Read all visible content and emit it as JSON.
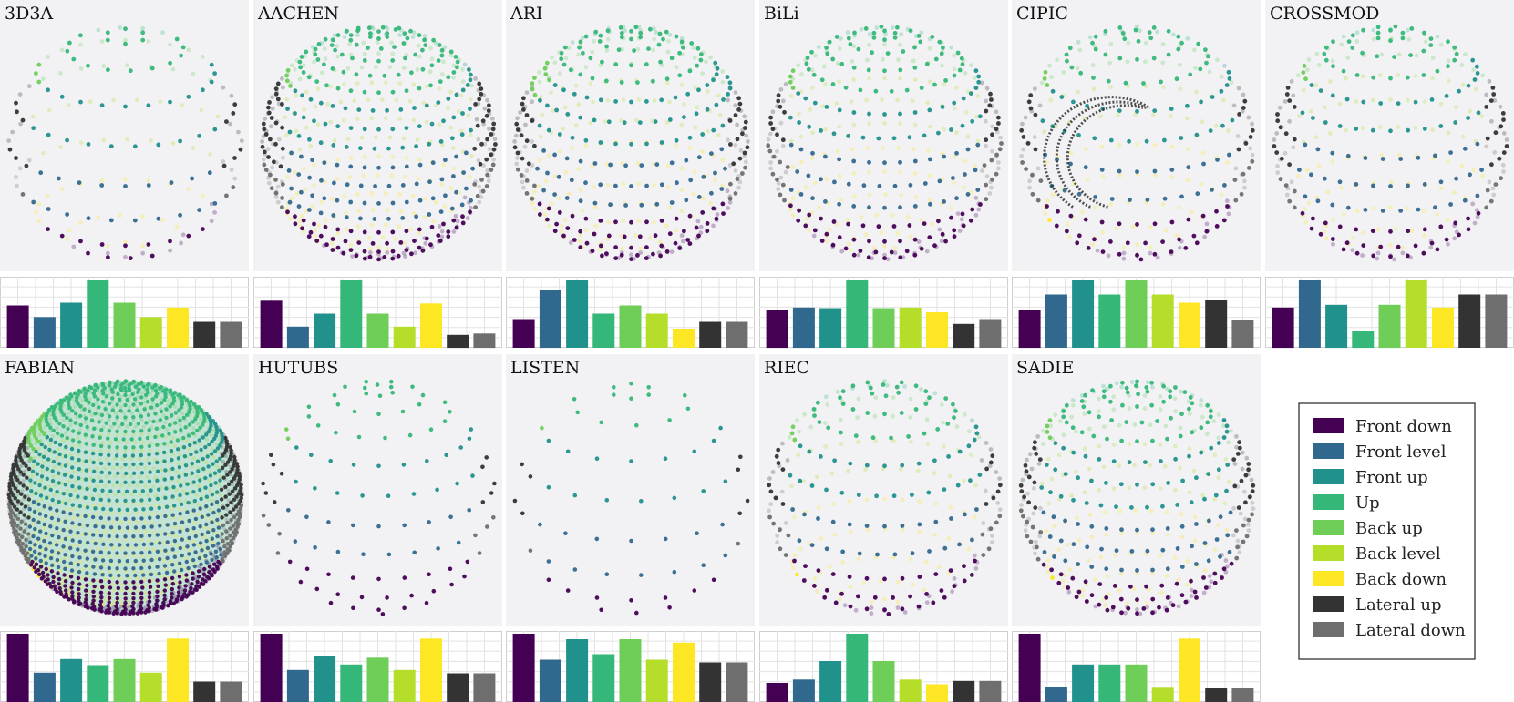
{
  "colors": {
    "Front down": "#440154",
    "Front level": "#31688e",
    "Front up": "#21918c",
    "Up": "#35b779",
    "Back up": "#6ece58",
    "Back level": "#b5de2b",
    "Back down": "#fde725",
    "Lateral up": "#333333",
    "Lateral down": "#6e6e6e"
  },
  "legend": {
    "items": [
      "Front down",
      "Front level",
      "Front up",
      "Up",
      "Back up",
      "Back level",
      "Back down",
      "Lateral up",
      "Lateral down"
    ]
  },
  "chart_data": [
    {
      "type": "bar",
      "title": "3D3A",
      "categories": [
        "Front down",
        "Front level",
        "Front up",
        "Up",
        "Back up",
        "Back level",
        "Back down",
        "Lateral up",
        "Lateral down"
      ],
      "values": [
        0.62,
        0.45,
        0.66,
        1.0,
        0.66,
        0.45,
        0.59,
        0.38,
        0.38
      ],
      "ylim": [
        0,
        1
      ],
      "grid": true,
      "sphere": {
        "style": "rings",
        "rows": 9,
        "density": 0.6
      }
    },
    {
      "type": "bar",
      "title": "AACHEN",
      "categories": [
        "Front down",
        "Front level",
        "Front up",
        "Up",
        "Back up",
        "Back level",
        "Back down",
        "Lateral up",
        "Lateral down"
      ],
      "values": [
        0.69,
        0.31,
        0.5,
        1.0,
        0.5,
        0.31,
        0.65,
        0.19,
        0.21
      ],
      "ylim": [
        0,
        1
      ],
      "grid": true,
      "sphere": {
        "style": "grid",
        "rows": 19,
        "density": 1.0
      }
    },
    {
      "type": "bar",
      "title": "ARI",
      "categories": [
        "Front down",
        "Front level",
        "Front up",
        "Up",
        "Back up",
        "Back level",
        "Back down",
        "Lateral up",
        "Lateral down"
      ],
      "values": [
        0.42,
        0.85,
        1.0,
        0.5,
        0.62,
        0.5,
        0.28,
        0.38,
        0.38
      ],
      "ylim": [
        0,
        1
      ],
      "grid": true,
      "sphere": {
        "style": "grid",
        "rows": 17,
        "density": 0.9
      }
    },
    {
      "type": "bar",
      "title": "BiLi",
      "categories": [
        "Front down",
        "Front level",
        "Front up",
        "Up",
        "Back up",
        "Back level",
        "Back down",
        "Lateral up",
        "Lateral down"
      ],
      "values": [
        0.55,
        0.59,
        0.58,
        1.0,
        0.58,
        0.59,
        0.52,
        0.35,
        0.42
      ],
      "ylim": [
        0,
        1
      ],
      "grid": true,
      "sphere": {
        "style": "grid",
        "rows": 15,
        "density": 0.9
      }
    },
    {
      "type": "bar",
      "title": "CIPIC",
      "categories": [
        "Front down",
        "Front level",
        "Front up",
        "Up",
        "Back up",
        "Back level",
        "Back down",
        "Lateral up",
        "Lateral down"
      ],
      "values": [
        0.55,
        0.78,
        1.0,
        0.78,
        1.0,
        0.78,
        0.66,
        0.7,
        0.4
      ],
      "ylim": [
        0,
        1
      ],
      "grid": true,
      "sphere": {
        "style": "arcs",
        "rows": 12,
        "density": 0.8
      }
    },
    {
      "type": "bar",
      "title": "CROSSMOD",
      "categories": [
        "Front down",
        "Front level",
        "Front up",
        "Up",
        "Back up",
        "Back level",
        "Back down",
        "Lateral up",
        "Lateral down"
      ],
      "values": [
        0.59,
        1.0,
        0.63,
        0.25,
        0.63,
        1.0,
        0.59,
        0.78,
        0.78
      ],
      "ylim": [
        0,
        1
      ],
      "grid": true,
      "sphere": {
        "style": "grid",
        "rows": 13,
        "density": 0.8
      }
    },
    {
      "type": "bar",
      "title": "FABIAN",
      "categories": [
        "Front down",
        "Front level",
        "Front up",
        "Up",
        "Back up",
        "Back level",
        "Back down",
        "Lateral up",
        "Lateral down"
      ],
      "values": [
        1.0,
        0.43,
        0.63,
        0.54,
        0.63,
        0.43,
        0.93,
        0.3,
        0.3
      ],
      "ylim": [
        0,
        1
      ],
      "grid": true,
      "sphere": {
        "style": "solid",
        "rows": 40,
        "density": 1.0
      }
    },
    {
      "type": "bar",
      "title": "HUTUBS",
      "categories": [
        "Front down",
        "Front level",
        "Front up",
        "Up",
        "Back up",
        "Back level",
        "Back down",
        "Lateral up",
        "Lateral down"
      ],
      "values": [
        1.0,
        0.47,
        0.67,
        0.55,
        0.65,
        0.47,
        0.93,
        0.42,
        0.42
      ],
      "ylim": [
        0,
        1
      ],
      "grid": true,
      "sphere": {
        "style": "sparse",
        "rows": 12,
        "density": 0.55
      }
    },
    {
      "type": "bar",
      "title": "LISTEN",
      "categories": [
        "Front down",
        "Front level",
        "Front up",
        "Up",
        "Back up",
        "Back level",
        "Back down",
        "Lateral up",
        "Lateral down"
      ],
      "values": [
        1.0,
        0.62,
        0.92,
        0.7,
        0.92,
        0.62,
        0.87,
        0.58,
        0.58
      ],
      "ylim": [
        0,
        1
      ],
      "grid": true,
      "sphere": {
        "style": "sparse",
        "rows": 9,
        "density": 0.4
      }
    },
    {
      "type": "bar",
      "title": "RIEC",
      "categories": [
        "Front down",
        "Front level",
        "Front up",
        "Up",
        "Back up",
        "Back level",
        "Back down",
        "Lateral up",
        "Lateral down"
      ],
      "values": [
        0.28,
        0.33,
        0.6,
        1.0,
        0.6,
        0.33,
        0.26,
        0.31,
        0.31
      ],
      "ylim": [
        0,
        1
      ],
      "grid": true,
      "sphere": {
        "style": "rings",
        "rows": 12,
        "density": 0.8
      }
    },
    {
      "type": "bar",
      "title": "SADIE",
      "categories": [
        "Front down",
        "Front level",
        "Front up",
        "Up",
        "Back up",
        "Back level",
        "Back down",
        "Lateral up",
        "Lateral down"
      ],
      "values": [
        1.0,
        0.22,
        0.55,
        0.55,
        0.55,
        0.21,
        0.93,
        0.2,
        0.2
      ],
      "ylim": [
        0,
        1
      ],
      "grid": true,
      "sphere": {
        "style": "rings",
        "rows": 16,
        "density": 0.9
      }
    }
  ]
}
